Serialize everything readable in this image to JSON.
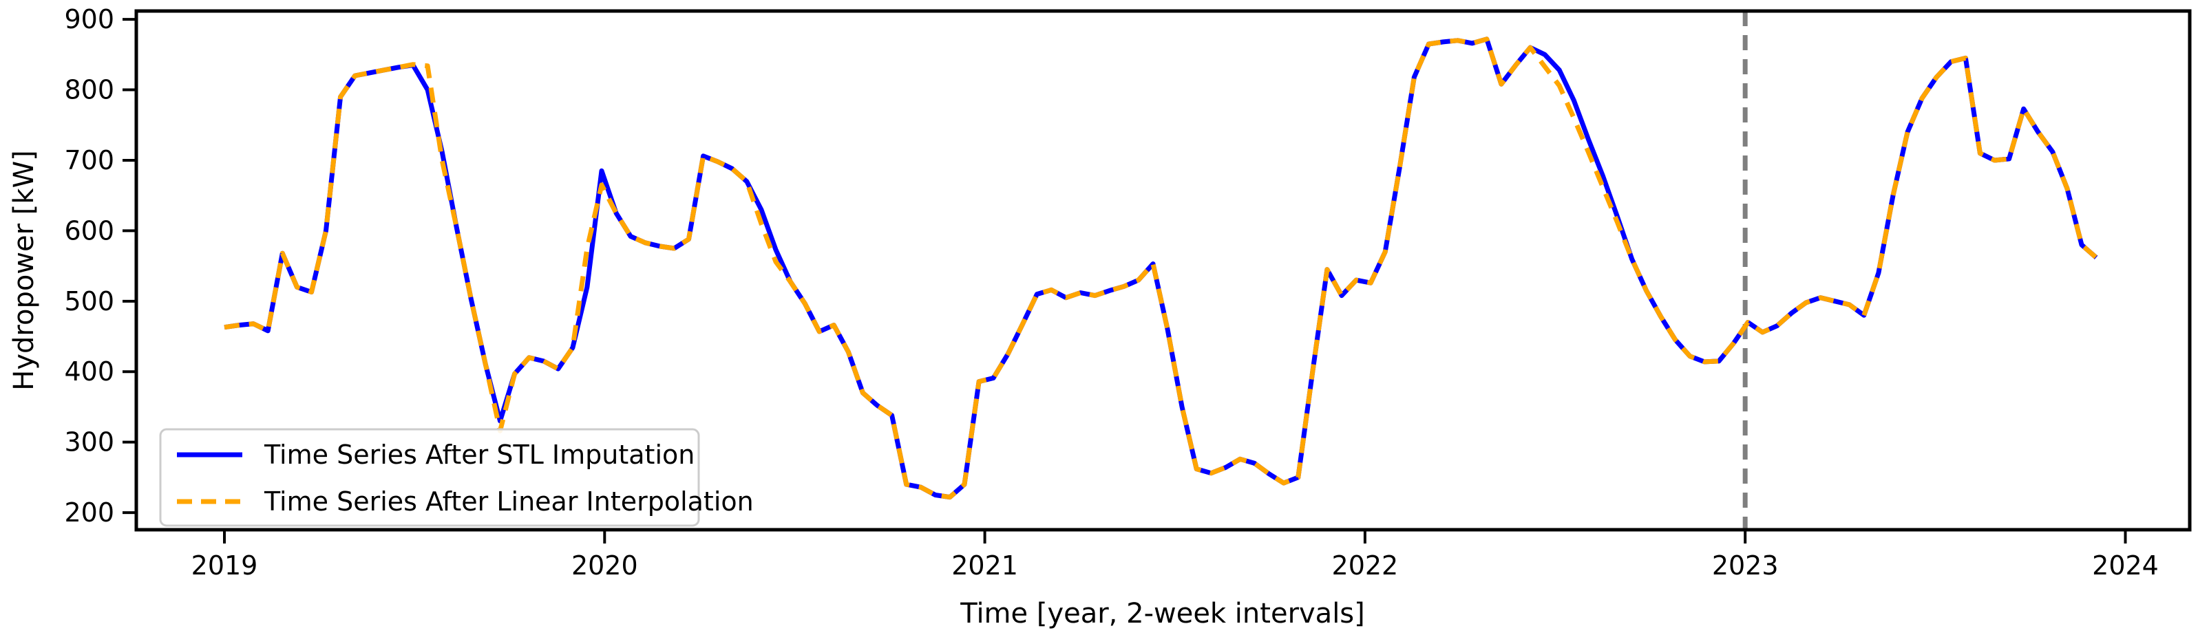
{
  "chart_data": {
    "type": "line",
    "title": "",
    "xlabel": "Time [year, 2-week intervals]",
    "ylabel": "Hydropower [kW]",
    "x_tick_labels": [
      "2019",
      "2020",
      "2021",
      "2022",
      "2023",
      "2024"
    ],
    "y_ticks": [
      200,
      300,
      400,
      500,
      600,
      700,
      800,
      900
    ],
    "ylim": [
      176,
      912
    ],
    "x_start_year": 2019,
    "points_per_year": 26.09,
    "grid": "off",
    "legend_position": "lower left",
    "vline": {
      "x_year": "2023",
      "color": "#7f7f7f",
      "style": "dashed"
    },
    "colors": {
      "stl": "#0000FF",
      "linear": "#FFA500",
      "vline": "#7f7f7f",
      "legend_border": "#cccccc",
      "spine": "#000000"
    },
    "series": [
      {
        "name": "Time Series After STL Imputation",
        "color": "#0000FF",
        "style": "solid",
        "values": [
          463,
          466,
          468,
          458,
          568,
          520,
          513,
          600,
          790,
          820,
          824,
          828,
          832,
          835,
          800,
          712,
          605,
          503,
          410,
          330,
          397,
          420,
          415,
          404,
          434,
          520,
          685,
          625,
          592,
          583,
          578,
          575,
          588,
          706,
          698,
          688,
          670,
          630,
          573,
          528,
          497,
          457,
          466,
          428,
          370,
          352,
          338,
          240,
          236,
          225,
          222,
          240,
          386,
          391,
          425,
          467,
          510,
          516,
          505,
          512,
          508,
          515,
          521,
          530,
          553,
          460,
          350,
          262,
          256,
          264,
          276,
          270,
          255,
          242,
          250,
          400,
          545,
          508,
          530,
          526,
          570,
          690,
          818,
          865,
          868,
          870,
          866,
          872,
          808,
          835,
          860,
          850,
          828,
          785,
          730,
          678,
          620,
          560,
          515,
          478,
          445,
          422,
          414,
          415,
          440,
          470,
          456,
          465,
          483,
          498,
          505,
          500,
          495,
          480,
          540,
          650,
          740,
          788,
          818,
          840,
          845,
          710,
          700,
          702,
          773,
          740,
          712,
          660,
          580,
          562
        ]
      },
      {
        "name": "Time Series After Linear Interpolation",
        "color": "#FFA500",
        "style": "dashed",
        "values": [
          463,
          466,
          468,
          458,
          568,
          520,
          513,
          600,
          790,
          820,
          824,
          828,
          832,
          836,
          834,
          700,
          605,
          503,
          410,
          316,
          397,
          420,
          415,
          404,
          434,
          575,
          665,
          625,
          592,
          583,
          578,
          575,
          588,
          706,
          698,
          688,
          670,
          610,
          556,
          528,
          497,
          457,
          466,
          428,
          370,
          352,
          338,
          240,
          236,
          225,
          222,
          240,
          386,
          391,
          425,
          467,
          510,
          516,
          505,
          512,
          508,
          515,
          521,
          530,
          553,
          460,
          350,
          262,
          256,
          264,
          276,
          270,
          255,
          242,
          250,
          400,
          545,
          508,
          530,
          526,
          570,
          690,
          818,
          865,
          868,
          870,
          866,
          872,
          808,
          835,
          860,
          833,
          806,
          760,
          712,
          662,
          612,
          560,
          515,
          478,
          445,
          422,
          414,
          415,
          440,
          470,
          456,
          465,
          483,
          498,
          505,
          500,
          495,
          480,
          540,
          650,
          740,
          788,
          818,
          840,
          845,
          710,
          700,
          702,
          773,
          740,
          712,
          660,
          580,
          562
        ]
      }
    ]
  }
}
